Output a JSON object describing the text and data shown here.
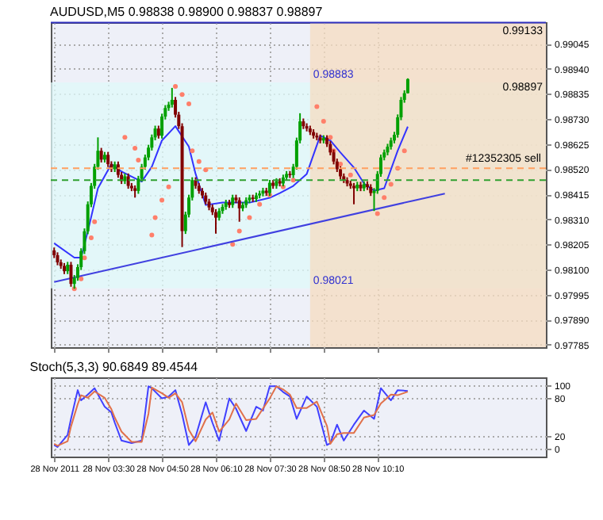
{
  "chart_data": [
    {
      "type": "candlestick",
      "title": "AUDUSD,M5  0.98838 0.98900 0.98837 0.98897",
      "x": [
        "2011-11-28T02:10",
        "2011-11-28T02:15",
        "2011-11-28T02:20",
        "2011-11-28T02:25",
        "2011-11-28T02:30",
        "2011-11-28T02:35",
        "2011-11-28T02:40",
        "2011-11-28T02:45",
        "2011-11-28T02:50",
        "2011-11-28T02:55",
        "2011-11-28T03:00",
        "2011-11-28T03:05",
        "2011-11-28T03:10",
        "2011-11-28T03:15",
        "2011-11-28T03:20",
        "2011-11-28T03:25",
        "2011-11-28T03:30",
        "2011-11-28T03:35",
        "2011-11-28T03:40",
        "2011-11-28T03:45",
        "2011-11-28T03:50",
        "2011-11-28T03:55",
        "2011-11-28T04:00",
        "2011-11-28T04:05",
        "2011-11-28T04:10",
        "2011-11-28T04:15",
        "2011-11-28T04:20",
        "2011-11-28T04:25",
        "2011-11-28T04:30",
        "2011-11-28T04:35",
        "2011-11-28T04:40",
        "2011-11-28T04:45",
        "2011-11-28T04:50",
        "2011-11-28T04:55",
        "2011-11-28T05:00",
        "2011-11-28T05:05",
        "2011-11-28T05:10",
        "2011-11-28T05:15",
        "2011-11-28T05:20",
        "2011-11-28T05:25",
        "2011-11-28T05:30",
        "2011-11-28T05:35",
        "2011-11-28T05:40",
        "2011-11-28T05:45",
        "2011-11-28T05:50",
        "2011-11-28T05:55",
        "2011-11-28T06:00",
        "2011-11-28T06:05",
        "2011-11-28T06:10",
        "2011-11-28T06:15",
        "2011-11-28T06:20",
        "2011-11-28T06:25",
        "2011-11-28T06:30",
        "2011-11-28T06:35",
        "2011-11-28T06:40",
        "2011-11-28T06:45",
        "2011-11-28T06:50",
        "2011-11-28T06:55",
        "2011-11-28T07:00",
        "2011-11-28T07:05",
        "2011-11-28T07:10",
        "2011-11-28T07:15",
        "2011-11-28T07:20",
        "2011-11-28T07:25",
        "2011-11-28T07:30",
        "2011-11-28T07:35",
        "2011-11-28T07:40",
        "2011-11-28T07:45",
        "2011-11-28T07:50",
        "2011-11-28T07:55",
        "2011-11-28T08:00",
        "2011-11-28T08:05",
        "2011-11-28T08:10",
        "2011-11-28T08:15",
        "2011-11-28T08:20",
        "2011-11-28T08:25",
        "2011-11-28T08:30",
        "2011-11-28T08:35",
        "2011-11-28T08:40",
        "2011-11-28T08:45",
        "2011-11-28T08:50",
        "2011-11-28T08:55",
        "2011-11-28T09:00",
        "2011-11-28T09:05",
        "2011-11-28T09:10",
        "2011-11-28T09:15",
        "2011-11-28T09:20",
        "2011-11-28T09:25",
        "2011-11-28T09:30",
        "2011-11-28T09:35",
        "2011-11-28T09:40",
        "2011-11-28T09:45",
        "2011-11-28T09:50",
        "2011-11-28T09:55",
        "2011-11-28T10:00",
        "2011-11-28T10:05",
        "2011-11-28T10:10",
        "2011-11-28T10:15",
        "2011-11-28T10:20",
        "2011-11-28T10:25",
        "2011-11-28T10:30",
        "2011-11-28T10:35",
        "2011-11-28T10:40",
        "2011-11-28T10:45",
        "2011-11-28T10:50",
        "2011-11-28T10:55"
      ],
      "ohlc": [
        [
          0.9818,
          0.98192,
          0.98148,
          0.9816
        ],
        [
          0.9816,
          0.98172,
          0.98118,
          0.9813
        ],
        [
          0.9813,
          0.98142,
          0.98103,
          0.98115
        ],
        [
          0.98115,
          0.98127,
          0.98081,
          0.98093
        ],
        [
          0.98093,
          0.98132,
          0.98081,
          0.9812
        ],
        [
          0.9812,
          0.98132,
          0.98028,
          0.9804
        ],
        [
          0.9804,
          0.98077,
          0.9802,
          0.98065
        ],
        [
          0.98065,
          0.98122,
          0.98053,
          0.9811
        ],
        [
          0.9811,
          0.98189,
          0.98098,
          0.98177
        ],
        [
          0.98177,
          0.98272,
          0.98165,
          0.9826
        ],
        [
          0.9826,
          0.98385,
          0.98248,
          0.98373
        ],
        [
          0.98373,
          0.98462,
          0.98361,
          0.9845
        ],
        [
          0.9845,
          0.98542,
          0.98438,
          0.9853
        ],
        [
          0.9853,
          0.98653,
          0.98518,
          0.98597
        ],
        [
          0.98597,
          0.98609,
          0.98548,
          0.9856
        ],
        [
          0.9856,
          0.98592,
          0.98548,
          0.9858
        ],
        [
          0.9858,
          0.98592,
          0.98529,
          0.98541
        ],
        [
          0.98541,
          0.98553,
          0.98508,
          0.9852
        ],
        [
          0.9852,
          0.98552,
          0.98508,
          0.9854
        ],
        [
          0.9854,
          0.98552,
          0.98484,
          0.98496
        ],
        [
          0.98496,
          0.98508,
          0.98458,
          0.9847
        ],
        [
          0.9847,
          0.98502,
          0.98458,
          0.9849
        ],
        [
          0.9849,
          0.98502,
          0.98438,
          0.9845
        ],
        [
          0.9845,
          0.98462,
          0.98428,
          0.9844
        ],
        [
          0.9844,
          0.98452,
          0.98401,
          0.98429
        ],
        [
          0.98429,
          0.98492,
          0.98417,
          0.9848
        ],
        [
          0.9848,
          0.98542,
          0.98468,
          0.9853
        ],
        [
          0.9853,
          0.98581,
          0.98518,
          0.98569
        ],
        [
          0.98569,
          0.98622,
          0.98557,
          0.9861
        ],
        [
          0.9861,
          0.98665,
          0.98598,
          0.98653
        ],
        [
          0.98653,
          0.98702,
          0.98641,
          0.9869
        ],
        [
          0.9869,
          0.98702,
          0.98648,
          0.9866
        ],
        [
          0.9866,
          0.98752,
          0.98648,
          0.9874
        ],
        [
          0.9874,
          0.98788,
          0.98728,
          0.98776
        ],
        [
          0.98776,
          0.98802,
          0.98764,
          0.9879
        ],
        [
          0.9879,
          0.9886,
          0.98778,
          0.9881
        ],
        [
          0.9881,
          0.98822,
          0.98736,
          0.98748
        ],
        [
          0.98748,
          0.9876,
          0.98688,
          0.987
        ],
        [
          0.987,
          0.98712,
          0.98194,
          0.98261
        ],
        [
          0.98261,
          0.98342,
          0.98249,
          0.9833
        ],
        [
          0.9833,
          0.98413,
          0.98318,
          0.98401
        ],
        [
          0.98401,
          0.98486,
          0.98389,
          0.98474
        ],
        [
          0.98474,
          0.98486,
          0.98438,
          0.9845
        ],
        [
          0.9845,
          0.98462,
          0.98417,
          0.98429
        ],
        [
          0.98429,
          0.98441,
          0.98398,
          0.9841
        ],
        [
          0.9841,
          0.98422,
          0.98372,
          0.98384
        ],
        [
          0.98384,
          0.98396,
          0.98348,
          0.9836
        ],
        [
          0.9836,
          0.98372,
          0.98328,
          0.9834
        ],
        [
          0.9834,
          0.98352,
          0.9825,
          0.98317
        ],
        [
          0.98317,
          0.98357,
          0.98305,
          0.98345
        ],
        [
          0.98345,
          0.98374,
          0.98333,
          0.98362
        ],
        [
          0.98362,
          0.98392,
          0.9835,
          0.9838
        ],
        [
          0.9838,
          0.98392,
          0.98358,
          0.9837
        ],
        [
          0.9837,
          0.98413,
          0.98358,
          0.98401
        ],
        [
          0.98401,
          0.98413,
          0.98378,
          0.9839
        ],
        [
          0.9839,
          0.98402,
          0.983,
          0.98356
        ],
        [
          0.98356,
          0.98382,
          0.98344,
          0.9837
        ],
        [
          0.9837,
          0.98402,
          0.98358,
          0.9839
        ],
        [
          0.9839,
          0.98413,
          0.98378,
          0.98401
        ],
        [
          0.98401,
          0.98413,
          0.98383,
          0.98395
        ],
        [
          0.98395,
          0.98422,
          0.98383,
          0.9841
        ],
        [
          0.9841,
          0.9843,
          0.98398,
          0.98418
        ],
        [
          0.98418,
          0.98442,
          0.98406,
          0.9843
        ],
        [
          0.9843,
          0.98442,
          0.98408,
          0.9842
        ],
        [
          0.9842,
          0.98475,
          0.98408,
          0.98463
        ],
        [
          0.98463,
          0.98475,
          0.98438,
          0.9845
        ],
        [
          0.9845,
          0.98482,
          0.98438,
          0.9847
        ],
        [
          0.9847,
          0.98482,
          0.98448,
          0.9846
        ],
        [
          0.9846,
          0.98497,
          0.98448,
          0.98485
        ],
        [
          0.98485,
          0.98512,
          0.98473,
          0.985
        ],
        [
          0.985,
          0.98512,
          0.98483,
          0.98495
        ],
        [
          0.98495,
          0.98542,
          0.98483,
          0.9853
        ],
        [
          0.9853,
          0.98652,
          0.98518,
          0.9864
        ],
        [
          0.9864,
          0.98754,
          0.98628,
          0.9872
        ],
        [
          0.9872,
          0.98732,
          0.98688,
          0.987
        ],
        [
          0.987,
          0.98712,
          0.98678,
          0.9869
        ],
        [
          0.9869,
          0.98702,
          0.98663,
          0.98675
        ],
        [
          0.98675,
          0.98687,
          0.98648,
          0.9866
        ],
        [
          0.9866,
          0.98672,
          0.98641,
          0.98653
        ],
        [
          0.98653,
          0.98665,
          0.98628,
          0.9864
        ],
        [
          0.9864,
          0.98662,
          0.98628,
          0.9865
        ],
        [
          0.9865,
          0.98662,
          0.98613,
          0.98625
        ],
        [
          0.98625,
          0.98637,
          0.98578,
          0.9859
        ],
        [
          0.9859,
          0.98602,
          0.9854,
          0.98552
        ],
        [
          0.98552,
          0.98564,
          0.98508,
          0.9852
        ],
        [
          0.9852,
          0.98532,
          0.98478,
          0.9849
        ],
        [
          0.9849,
          0.98502,
          0.98462,
          0.98474
        ],
        [
          0.98474,
          0.98486,
          0.98448,
          0.9846
        ],
        [
          0.9846,
          0.98472,
          0.98438,
          0.9845
        ],
        [
          0.9845,
          0.98462,
          0.98373,
          0.9844
        ],
        [
          0.9844,
          0.98467,
          0.98428,
          0.98455
        ],
        [
          0.98455,
          0.98467,
          0.98428,
          0.9844
        ],
        [
          0.9844,
          0.98469,
          0.98428,
          0.98457
        ],
        [
          0.98457,
          0.98469,
          0.98433,
          0.98445
        ],
        [
          0.98445,
          0.98457,
          0.98408,
          0.9842
        ],
        [
          0.9842,
          0.98441,
          0.98345,
          0.98429
        ],
        [
          0.98429,
          0.98512,
          0.98417,
          0.985
        ],
        [
          0.985,
          0.98581,
          0.98488,
          0.98569
        ],
        [
          0.98569,
          0.98602,
          0.98557,
          0.9859
        ],
        [
          0.9859,
          0.98626,
          0.98578,
          0.98614
        ],
        [
          0.98614,
          0.98652,
          0.98602,
          0.9864
        ],
        [
          0.9864,
          0.98676,
          0.98628,
          0.98664
        ],
        [
          0.98664,
          0.98749,
          0.98652,
          0.98737
        ],
        [
          0.98737,
          0.98822,
          0.98725,
          0.9881
        ],
        [
          0.9881,
          0.9885,
          0.98798,
          0.98838
        ],
        [
          0.98838,
          0.989,
          0.98837,
          0.98897
        ]
      ],
      "series": [
        {
          "type": "line",
          "color": "#3333ff",
          "x": [
            "2011-11-28T02:10",
            "2011-11-28T02:40",
            "2011-11-28T02:50",
            "2011-11-28T03:00",
            "2011-11-28T03:15",
            "2011-11-28T03:35",
            "2011-11-28T03:50",
            "2011-11-28T04:20",
            "2011-11-28T04:35",
            "2011-11-28T04:50",
            "2011-11-28T05:10",
            "2011-11-28T05:30",
            "2011-11-28T05:40",
            "2011-11-28T05:55",
            "2011-11-28T06:20",
            "2011-11-28T07:00",
            "2011-11-28T07:30",
            "2011-11-28T07:45",
            "2011-11-28T08:05",
            "2011-11-28T08:25",
            "2011-11-28T08:45",
            "2011-11-28T09:00",
            "2011-11-28T09:15",
            "2011-11-28T09:35",
            "2011-11-28T09:50",
            "2011-11-28T10:05",
            "2011-11-28T10:20",
            "2011-11-28T10:40",
            "2011-11-28T10:55"
          ],
          "values": [
            0.9821,
            0.9815,
            0.9815,
            0.9826,
            0.9844,
            0.98541,
            0.9851,
            0.98468,
            0.9853,
            0.9864,
            0.987,
            0.98614,
            0.985,
            0.9837,
            0.9838,
            0.9838,
            0.984,
            0.9842,
            0.9845,
            0.985,
            0.9866,
            0.9864,
            0.9859,
            0.98527,
            0.9846,
            0.9843,
            0.9844,
            0.98597,
            0.98698
          ]
        },
        {
          "type": "scatter",
          "color": "#ff7f6a",
          "marker": "circle",
          "x": [
            "2011-11-28T02:40",
            "2011-11-28T02:50",
            "2011-11-28T02:55",
            "2011-11-28T03:05",
            "2011-11-28T03:10",
            "2011-11-28T03:55",
            "2011-11-28T04:10",
            "2011-11-28T04:15",
            "2011-11-28T04:35",
            "2011-11-28T04:40",
            "2011-11-28T04:50",
            "2011-11-28T05:00",
            "2011-11-28T05:10",
            "2011-11-28T05:20",
            "2011-11-28T05:30",
            "2011-11-28T05:35",
            "2011-11-28T05:45",
            "2011-11-28T05:55",
            "2011-11-28T06:35",
            "2011-11-28T06:45",
            "2011-11-28T07:00",
            "2011-11-28T07:15",
            "2011-11-28T07:30",
            "2011-11-28T07:50",
            "2011-11-28T08:05",
            "2011-11-28T08:40",
            "2011-11-28T08:50",
            "2011-11-28T09:00",
            "2011-11-28T09:05",
            "2011-11-28T09:15",
            "2011-11-28T09:30",
            "2011-11-28T10:10",
            "2011-11-28T10:20",
            "2011-11-28T10:30",
            "2011-11-28T10:40",
            "2011-11-28T10:50"
          ],
          "values": [
            0.9802,
            0.98061,
            0.98149,
            0.98233,
            0.983,
            0.98653,
            0.98608,
            0.98558,
            0.98244,
            0.98317,
            0.9839,
            0.98446,
            0.98866,
            0.98832,
            0.98793,
            0.98597,
            0.98552,
            0.98517,
            0.98205,
            0.98261,
            0.98317,
            0.98373,
            0.98412,
            0.98446,
            0.98474,
            0.98782,
            0.9872,
            0.98653,
            0.98597,
            0.98541,
            0.98496,
            0.98334,
            0.98401,
            0.98457,
            0.98524,
            0.98597
          ]
        },
        {
          "type": "line",
          "color": "#4040e0",
          "x": [
            "2011-11-28T02:10",
            "2011-11-28T11:50"
          ],
          "values": [
            0.98048,
            0.98418
          ]
        }
      ],
      "xlim": [
        "2011-11-28T02:05",
        "2011-11-28T14:20"
      ],
      "xticks": [
        {
          "value": "2011-11-28T02:10",
          "label": null
        },
        {
          "value": "2011-11-28T03:30",
          "label": null
        },
        {
          "value": "2011-11-28T04:50",
          "label": null
        },
        {
          "value": "2011-11-28T06:10",
          "label": null
        },
        {
          "value": "2011-11-28T07:30",
          "label": null
        },
        {
          "value": "2011-11-28T08:50",
          "label": null
        },
        {
          "value": "2011-11-28T10:10",
          "label": null
        }
      ],
      "ylim": [
        0.97775,
        0.99135
      ],
      "yticks": [
        0.97785,
        {
          "value": 0.9789,
          "label": "0.97890"
        },
        0.97995,
        {
          "value": 0.981,
          "label": "0.98100"
        },
        0.98205,
        {
          "value": 0.9831,
          "label": "0.98310"
        },
        0.98415,
        {
          "value": 0.9852,
          "label": "0.98520"
        },
        0.98625,
        {
          "value": 0.9873,
          "label": "0.98730"
        },
        0.98835,
        {
          "value": 0.9894,
          "label": "0.98940"
        },
        0.99045
      ],
      "tick_labels": "y",
      "grid": true,
      "bands": [
        {
          "axis": "y",
          "from": 0.98021,
          "to": 0.98883,
          "color": "#dffafa"
        },
        {
          "axis": "x",
          "from": "2011-11-28T08:30",
          "to": "2011-11-28T14:20",
          "color": "#f6dcc0"
        }
      ],
      "ref_lines": [
        {
          "axis": "y",
          "value": 0.99133,
          "color": "#3030c0",
          "line_style": "solid"
        },
        {
          "axis": "y",
          "value": 0.98524,
          "color": "#ffa060",
          "line_style": "dashed",
          "label": "#12352305 sell"
        },
        {
          "axis": "y",
          "value": 0.98474,
          "color": "#30a030",
          "line_style": "dashed"
        }
      ],
      "annotations": [
        {
          "text": "0.98883",
          "x": "2011-11-28T08:30",
          "y": 0.98883
        },
        {
          "text": "0.98021",
          "x": "2011-11-28T08:30",
          "y": 0.98021
        },
        {
          "text": "0.99133",
          "y": 0.99133
        },
        {
          "text": "0.98897",
          "y": 0.98897
        }
      ]
    },
    {
      "type": "line",
      "title": "Stoch(5,3,3) 90.6849 89.4544",
      "x": [
        "2011-11-28T02:10",
        "2011-11-28T02:15",
        "2011-11-28T02:30",
        "2011-11-28T02:35",
        "2011-11-28T02:45",
        "2011-11-28T02:50",
        "2011-11-28T03:00",
        "2011-11-28T03:10",
        "2011-11-28T03:25",
        "2011-11-28T03:35",
        "2011-11-28T03:40",
        "2011-11-28T03:50",
        "2011-11-28T04:05",
        "2011-11-28T04:20",
        "2011-11-28T04:30",
        "2011-11-28T04:35",
        "2011-11-28T04:50",
        "2011-11-28T05:00",
        "2011-11-28T05:10",
        "2011-11-28T05:20",
        "2011-11-28T05:30",
        "2011-11-28T05:40",
        "2011-11-28T05:55",
        "2011-11-28T06:05",
        "2011-11-28T06:15",
        "2011-11-28T06:30",
        "2011-11-28T06:40",
        "2011-11-28T06:55",
        "2011-11-28T07:10",
        "2011-11-28T07:20",
        "2011-11-28T07:30",
        "2011-11-28T07:40",
        "2011-11-28T07:50",
        "2011-11-28T08:00",
        "2011-11-28T08:10",
        "2011-11-28T08:25",
        "2011-11-28T08:40",
        "2011-11-28T08:55",
        "2011-11-28T09:00",
        "2011-11-28T09:10",
        "2011-11-28T09:20",
        "2011-11-28T09:35",
        "2011-11-28T09:50",
        "2011-11-28T10:05",
        "2011-11-28T10:15",
        "2011-11-28T10:30",
        "2011-11-28T10:40",
        "2011-11-28T10:55"
      ],
      "series": [
        {
          "color": "#4040ff",
          "values": [
            6,
            3,
            22,
            47,
            92,
            76,
            85,
            95,
            66,
            57,
            41,
            13,
            9,
            13,
            98,
            95,
            79,
            82,
            92,
            54,
            6,
            19,
            73,
            41,
            13,
            79,
            63,
            28,
            66,
            60,
            98,
            98,
            89,
            82,
            47,
            82,
            66,
            6,
            9,
            38,
            13,
            38,
            60,
            47,
            95,
            76,
            92,
            90.7
          ]
        },
        {
          "color": "#e0704a",
          "values": [
            8,
            5,
            12,
            35,
            70,
            84,
            80,
            90,
            80,
            62,
            49,
            27,
            11,
            11,
            55,
            96,
            87,
            80,
            87,
            73,
            30,
            12,
            46,
            57,
            27,
            46,
            71,
            45,
            47,
            63,
            79,
            98,
            93,
            85,
            64,
            64,
            74,
            36,
            8,
            23,
            25,
            25,
            49,
            53,
            71,
            85,
            84,
            89.5
          ]
        }
      ],
      "xlim": [
        "2011-11-28T02:05",
        "2011-11-28T14:20"
      ],
      "xticks": [
        {
          "value": "2011-11-28T02:10",
          "label": "28 Nov 2011"
        },
        {
          "value": "2011-11-28T03:30",
          "label": "28 Nov 03:30"
        },
        {
          "value": "2011-11-28T04:50",
          "label": "28 Nov 04:50"
        },
        {
          "value": "2011-11-28T06:10",
          "label": "28 Nov 06:10"
        },
        {
          "value": "2011-11-28T07:30",
          "label": "28 Nov 07:30"
        },
        {
          "value": "2011-11-28T08:50",
          "label": "28 Nov 08:50"
        },
        {
          "value": "2011-11-28T10:10",
          "label": "28 Nov 10:10"
        }
      ],
      "ylim": [
        -12,
        112
      ],
      "yticks": [
        0,
        20,
        80,
        100
      ],
      "grid": true
    }
  ]
}
